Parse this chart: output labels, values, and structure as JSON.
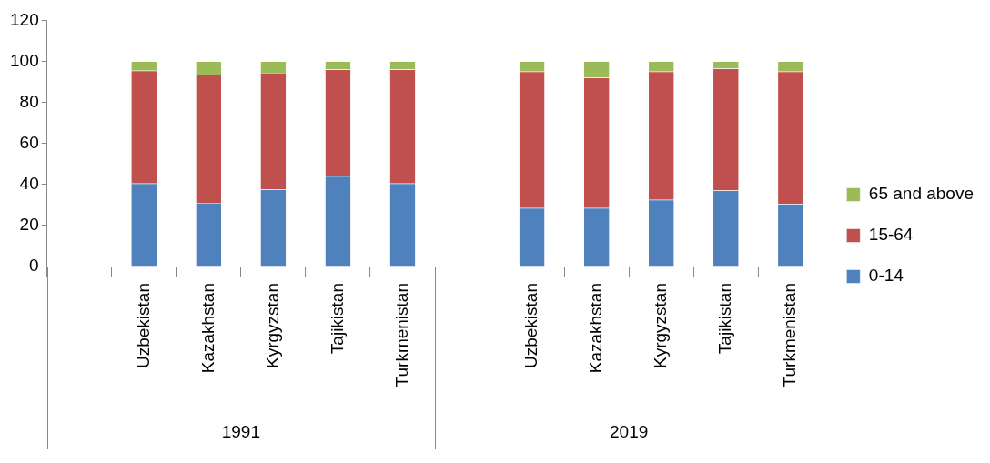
{
  "chart_data": {
    "type": "bar",
    "stacked": true,
    "categories": [
      null,
      "Uzbekistan",
      "Kazakhstan",
      "Kyrgyzstan",
      "Tajikistan",
      "Turkmenistan",
      null,
      "Uzbekistan",
      "Kazakhstan",
      "Kyrgyzstan",
      "Tajikistan",
      "Turkmenistan"
    ],
    "series": [
      {
        "name": "0-14",
        "color": "#4f81bd",
        "values": [
          null,
          40.5,
          31,
          37.5,
          44,
          40.5,
          null,
          28.5,
          28.5,
          32.5,
          37,
          30.5
        ]
      },
      {
        "name": "15-64",
        "color": "#c0504d",
        "values": [
          null,
          55,
          62.5,
          57,
          52,
          55.5,
          null,
          66.5,
          63.5,
          62.5,
          59.5,
          64.5
        ]
      },
      {
        "name": "65 and above",
        "color": "#9bbb59",
        "values": [
          null,
          4.5,
          6.5,
          5.5,
          4,
          4,
          null,
          5,
          8,
          5,
          3.5,
          5
        ]
      }
    ],
    "ylim": [
      0,
      120
    ],
    "yticks": [
      0,
      20,
      40,
      60,
      80,
      100,
      120
    ],
    "grid": false,
    "legend": "right",
    "annotations": [
      "1991",
      "2019"
    ]
  }
}
